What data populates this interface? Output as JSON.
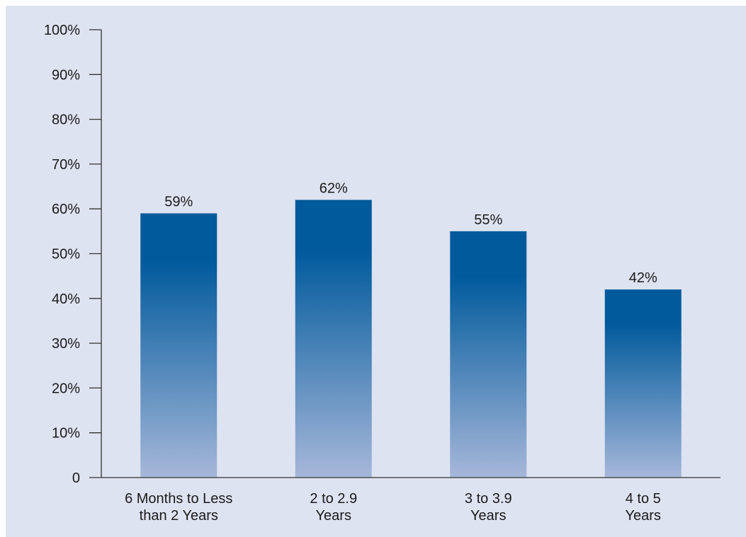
{
  "chart_data": {
    "type": "bar",
    "categories": [
      [
        "6 Months to Less",
        "than 2 Years"
      ],
      [
        "2 to 2.9",
        "Years"
      ],
      [
        "3 to 3.9",
        "Years"
      ],
      [
        "4 to 5",
        "Years"
      ]
    ],
    "values": [
      59,
      62,
      55,
      42
    ],
    "data_labels": [
      "59%",
      "62%",
      "55%",
      "42%"
    ],
    "y_ticks": [
      0,
      10,
      20,
      30,
      40,
      50,
      60,
      70,
      80,
      90,
      100
    ],
    "y_tick_labels": [
      "0",
      "10%",
      "20%",
      "30%",
      "40%",
      "50%",
      "60%",
      "70%",
      "80%",
      "90%",
      "100%"
    ],
    "ylim": [
      0,
      100
    ],
    "grid": false,
    "title": "",
    "xlabel": "",
    "ylabel": "",
    "colors": {
      "background": "#dee3f1",
      "bar_top": "#005a9c",
      "bar_bottom": "#a6b7d9"
    }
  }
}
